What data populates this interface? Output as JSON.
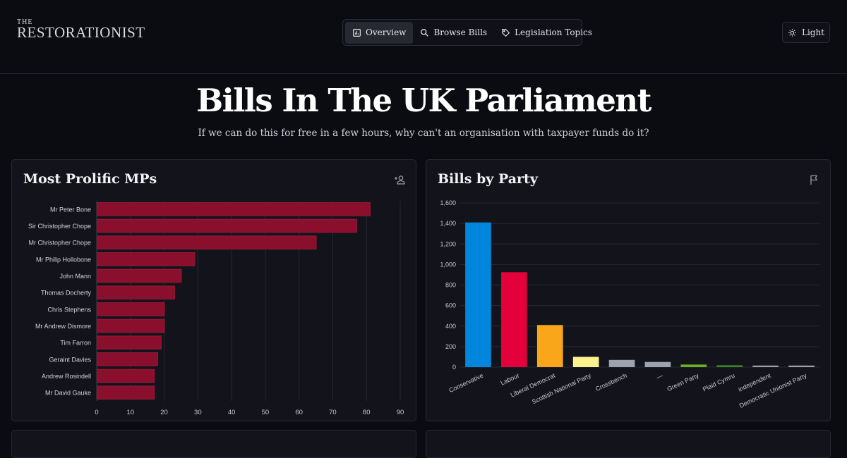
{
  "brand": {
    "small": "THE",
    "big": "RESTORATIONIST"
  },
  "nav": {
    "overview": "Overview",
    "browse": "Browse Bills",
    "topics": "Legislation Topics"
  },
  "theme_toggle": "Light",
  "hero": {
    "title": "Bills In The UK Parliament",
    "subtitle": "If we can do this for free in a few hours, why can't an organisation with taxpayer funds do it?"
  },
  "cards": {
    "mps": {
      "title": "Most Prolific MPs",
      "icon": "user-plus-icon"
    },
    "party": {
      "title": "Bills by Party",
      "icon": "flag-icon"
    }
  },
  "chart_data": [
    {
      "type": "bar",
      "orientation": "horizontal",
      "categories": [
        "Mr Peter Bone",
        "Sir Christopher Chope",
        "Mr Christopher Chope",
        "Mr Philip Hollobone",
        "John Mann",
        "Thomas Docherty",
        "Chris Stephens",
        "Mr Andrew Dismore",
        "Tim Farron",
        "Geraint Davies",
        "Andrew Rosindell",
        "Mr David Gauke"
      ],
      "values": [
        81,
        77,
        65,
        29,
        25,
        23,
        20,
        20,
        19,
        18,
        17,
        17
      ],
      "xlim": [
        0,
        90
      ],
      "xticks": [
        "0",
        "10",
        "20",
        "30",
        "40",
        "50",
        "60",
        "70",
        "80",
        "90"
      ],
      "color": "#8a0f2c",
      "grid": true
    },
    {
      "type": "bar",
      "categories": [
        "Conservative",
        "Labour",
        "Liberal Democrat",
        "Scottish National Party",
        "Crossbench",
        "—",
        "Green Party",
        "Plaid Cymru",
        "independent",
        "Democratic Unionist Party"
      ],
      "values": [
        1410,
        925,
        410,
        100,
        70,
        50,
        25,
        18,
        15,
        15
      ],
      "colors": [
        "#0087dc",
        "#e4003b",
        "#faa61a",
        "#fdf38e",
        "#9ca3af",
        "#9ca3af",
        "#6ab023",
        "#3f8428",
        "#9ca3af",
        "#9ca3af"
      ],
      "ylim": [
        0,
        1600
      ],
      "yticks": [
        "0",
        "200",
        "400",
        "600",
        "800",
        "1,000",
        "1,200",
        "1,400",
        "1,600"
      ],
      "grid": true
    }
  ]
}
